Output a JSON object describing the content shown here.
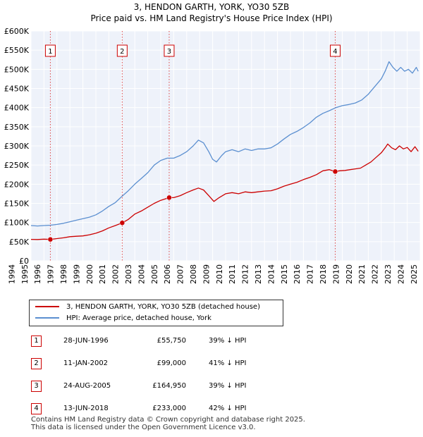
{
  "chart_data": {
    "type": "line",
    "title": "3, HENDON GARTH, YORK, YO30 5ZB",
    "subtitle": "Price paid vs. HM Land Registry's House Price Index (HPI)",
    "xlabel": "",
    "ylabel": "",
    "xlim": [
      1995,
      2025
    ],
    "ylim": [
      0,
      600000
    ],
    "x_ticks": [
      "1994",
      "1995",
      "1996",
      "1997",
      "1998",
      "1999",
      "2000",
      "2001",
      "2002",
      "2003",
      "2004",
      "2005",
      "2006",
      "2007",
      "2008",
      "2009",
      "2010",
      "2011",
      "2012",
      "2013",
      "2014",
      "2015",
      "2016",
      "2017",
      "2018",
      "2019",
      "2020",
      "2021",
      "2022",
      "2023",
      "2024",
      "2025"
    ],
    "y_ticks": [
      {
        "value": 0,
        "label": "£0"
      },
      {
        "value": 50000,
        "label": "£50K"
      },
      {
        "value": 100000,
        "label": "£100K"
      },
      {
        "value": 150000,
        "label": "£150K"
      },
      {
        "value": 200000,
        "label": "£200K"
      },
      {
        "value": 250000,
        "label": "£250K"
      },
      {
        "value": 300000,
        "label": "£300K"
      },
      {
        "value": 350000,
        "label": "£350K"
      },
      {
        "value": 400000,
        "label": "£400K"
      },
      {
        "value": 450000,
        "label": "£450K"
      },
      {
        "value": 500000,
        "label": "£500K"
      },
      {
        "value": 550000,
        "label": "£550K"
      },
      {
        "value": 600000,
        "label": "£600K"
      }
    ],
    "series": [
      {
        "name": "3, HENDON GARTH, YORK, YO30 5ZB (detached house)",
        "color": "#cc0000",
        "points": [
          [
            1995.0,
            56000
          ],
          [
            1995.5,
            55500
          ],
          [
            1996.0,
            56500
          ],
          [
            1996.49,
            55750
          ],
          [
            1997.0,
            58000
          ],
          [
            1997.5,
            60000
          ],
          [
            1998.0,
            63000
          ],
          [
            1998.5,
            64000
          ],
          [
            1999.0,
            65000
          ],
          [
            1999.5,
            68000
          ],
          [
            2000.0,
            72000
          ],
          [
            2000.5,
            78000
          ],
          [
            2001.0,
            86000
          ],
          [
            2001.5,
            92000
          ],
          [
            2002.03,
            99000
          ],
          [
            2002.5,
            108000
          ],
          [
            2003.0,
            122000
          ],
          [
            2003.5,
            130000
          ],
          [
            2004.0,
            140000
          ],
          [
            2004.5,
            150000
          ],
          [
            2005.0,
            158000
          ],
          [
            2005.65,
            164950
          ],
          [
            2006.0,
            165000
          ],
          [
            2006.5,
            170000
          ],
          [
            2007.0,
            178000
          ],
          [
            2007.5,
            185000
          ],
          [
            2007.9,
            190000
          ],
          [
            2008.3,
            185000
          ],
          [
            2008.7,
            170000
          ],
          [
            2009.1,
            155000
          ],
          [
            2009.5,
            165000
          ],
          [
            2010.0,
            175000
          ],
          [
            2010.5,
            178000
          ],
          [
            2011.0,
            175000
          ],
          [
            2011.5,
            180000
          ],
          [
            2012.0,
            178000
          ],
          [
            2012.5,
            180000
          ],
          [
            2013.0,
            182000
          ],
          [
            2013.5,
            183000
          ],
          [
            2014.0,
            188000
          ],
          [
            2014.5,
            195000
          ],
          [
            2015.0,
            200000
          ],
          [
            2015.5,
            205000
          ],
          [
            2016.0,
            212000
          ],
          [
            2016.5,
            218000
          ],
          [
            2017.0,
            225000
          ],
          [
            2017.5,
            235000
          ],
          [
            2018.0,
            238000
          ],
          [
            2018.45,
            233000
          ],
          [
            2018.8,
            235000
          ],
          [
            2019.2,
            236000
          ],
          [
            2019.6,
            238000
          ],
          [
            2020.0,
            240000
          ],
          [
            2020.4,
            242000
          ],
          [
            2020.8,
            250000
          ],
          [
            2021.2,
            258000
          ],
          [
            2021.6,
            270000
          ],
          [
            2022.0,
            282000
          ],
          [
            2022.3,
            295000
          ],
          [
            2022.5,
            305000
          ],
          [
            2022.8,
            295000
          ],
          [
            2023.1,
            290000
          ],
          [
            2023.4,
            300000
          ],
          [
            2023.7,
            292000
          ],
          [
            2024.0,
            296000
          ],
          [
            2024.3,
            285000
          ],
          [
            2024.6,
            298000
          ],
          [
            2024.85,
            286000
          ]
        ]
      },
      {
        "name": "HPI: Average price, detached house, York",
        "color": "#5b8fd0",
        "points": [
          [
            1995.0,
            92000
          ],
          [
            1995.5,
            91000
          ],
          [
            1996.0,
            92000
          ],
          [
            1996.5,
            93000
          ],
          [
            1997.0,
            95000
          ],
          [
            1997.5,
            98000
          ],
          [
            1998.0,
            102000
          ],
          [
            1998.5,
            106000
          ],
          [
            1999.0,
            110000
          ],
          [
            1999.5,
            114000
          ],
          [
            2000.0,
            120000
          ],
          [
            2000.5,
            130000
          ],
          [
            2001.0,
            142000
          ],
          [
            2001.5,
            152000
          ],
          [
            2002.0,
            168000
          ],
          [
            2002.5,
            183000
          ],
          [
            2003.0,
            200000
          ],
          [
            2003.5,
            215000
          ],
          [
            2004.0,
            230000
          ],
          [
            2004.5,
            250000
          ],
          [
            2005.0,
            262000
          ],
          [
            2005.5,
            268000
          ],
          [
            2006.0,
            268000
          ],
          [
            2006.5,
            275000
          ],
          [
            2007.0,
            285000
          ],
          [
            2007.5,
            300000
          ],
          [
            2007.9,
            315000
          ],
          [
            2008.3,
            308000
          ],
          [
            2008.7,
            285000
          ],
          [
            2009.0,
            265000
          ],
          [
            2009.3,
            258000
          ],
          [
            2009.7,
            275000
          ],
          [
            2010.0,
            285000
          ],
          [
            2010.5,
            290000
          ],
          [
            2011.0,
            285000
          ],
          [
            2011.5,
            292000
          ],
          [
            2012.0,
            288000
          ],
          [
            2012.5,
            292000
          ],
          [
            2013.0,
            292000
          ],
          [
            2013.5,
            295000
          ],
          [
            2014.0,
            305000
          ],
          [
            2014.5,
            318000
          ],
          [
            2015.0,
            330000
          ],
          [
            2015.5,
            338000
          ],
          [
            2016.0,
            348000
          ],
          [
            2016.5,
            360000
          ],
          [
            2017.0,
            375000
          ],
          [
            2017.5,
            385000
          ],
          [
            2018.0,
            392000
          ],
          [
            2018.5,
            400000
          ],
          [
            2019.0,
            405000
          ],
          [
            2019.5,
            408000
          ],
          [
            2020.0,
            412000
          ],
          [
            2020.5,
            420000
          ],
          [
            2021.0,
            435000
          ],
          [
            2021.5,
            455000
          ],
          [
            2022.0,
            475000
          ],
          [
            2022.3,
            495000
          ],
          [
            2022.6,
            520000
          ],
          [
            2022.9,
            505000
          ],
          [
            2023.2,
            495000
          ],
          [
            2023.5,
            505000
          ],
          [
            2023.8,
            495000
          ],
          [
            2024.1,
            500000
          ],
          [
            2024.4,
            490000
          ],
          [
            2024.7,
            505000
          ],
          [
            2024.85,
            495000
          ]
        ]
      }
    ],
    "sale_markers": [
      {
        "label": "1",
        "x": 1996.49,
        "y": 55750
      },
      {
        "label": "2",
        "x": 2002.03,
        "y": 99000
      },
      {
        "label": "3",
        "x": 2005.65,
        "y": 164950
      },
      {
        "label": "4",
        "x": 2018.45,
        "y": 233000
      }
    ],
    "grid": true
  },
  "legend": {
    "property_label": "3, HENDON GARTH, YORK, YO30 5ZB (detached house)",
    "hpi_label": "HPI: Average price, detached house, York",
    "property_color": "#cc0000",
    "hpi_color": "#5b8fd0"
  },
  "sales": [
    {
      "num": "1",
      "date": "28-JUN-1996",
      "price": "£55,750",
      "hpi": "39% ↓ HPI"
    },
    {
      "num": "2",
      "date": "11-JAN-2002",
      "price": "£99,000",
      "hpi": "41% ↓ HPI"
    },
    {
      "num": "3",
      "date": "24-AUG-2005",
      "price": "£164,950",
      "hpi": "39% ↓ HPI"
    },
    {
      "num": "4",
      "date": "13-JUN-2018",
      "price": "£233,000",
      "hpi": "42% ↓ HPI"
    }
  ],
  "footer": {
    "line1": "Contains HM Land Registry data © Crown copyright and database right 2025.",
    "line2": "This data is licensed under the Open Government Licence v3.0."
  }
}
